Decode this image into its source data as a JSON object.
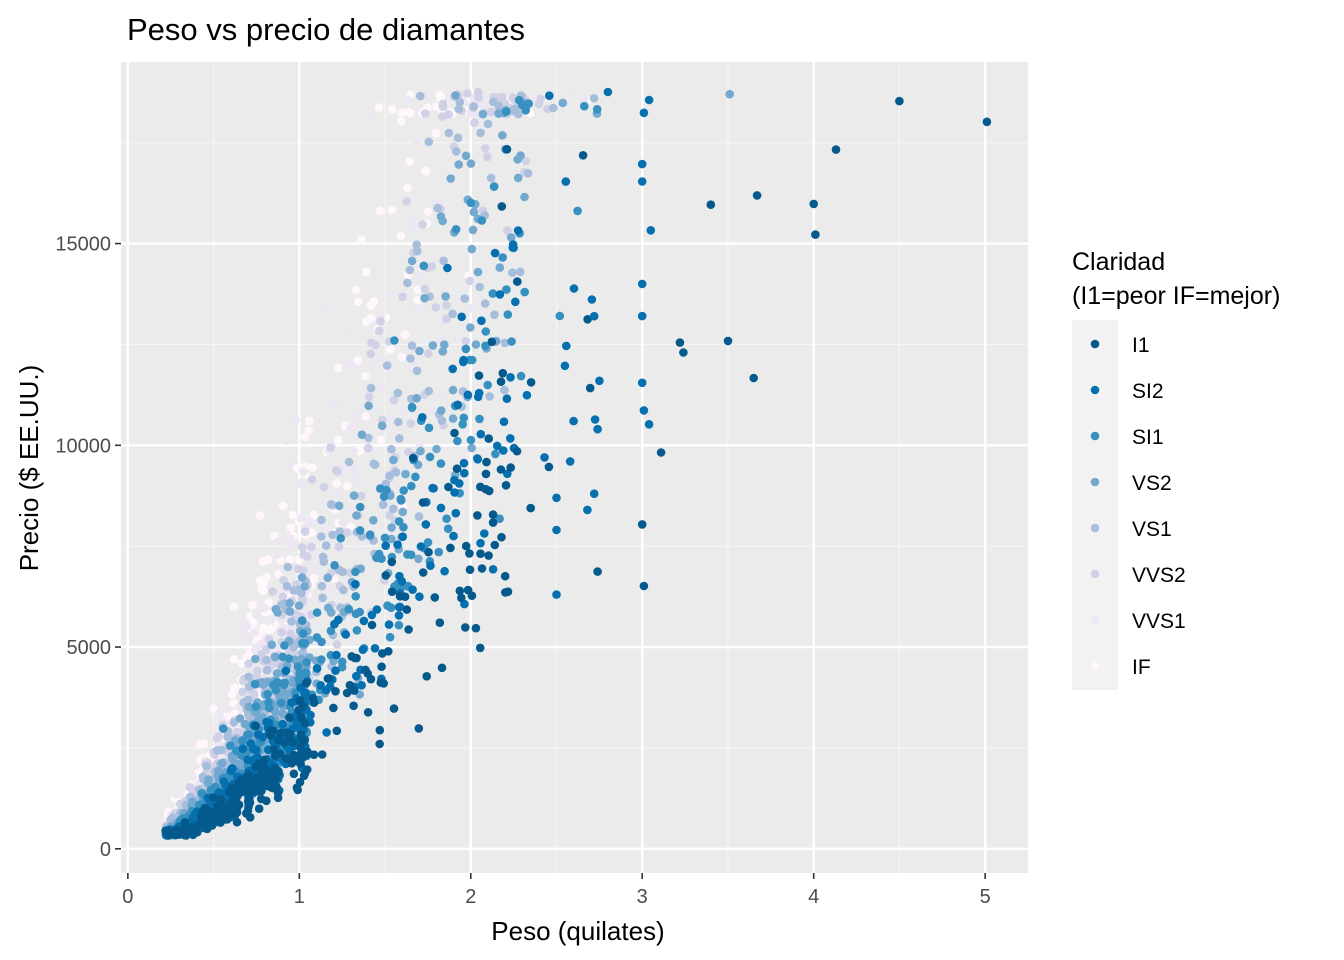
{
  "chart_data": {
    "type": "scatter",
    "title": "Peso vs precio de diamantes",
    "xlabel": "Peso (quilates)",
    "ylabel": "Precio ($ EE.UU.)",
    "xlim": [
      -0.04,
      5.25
    ],
    "ylim": [
      -600,
      19500
    ],
    "x_ticks": [
      0,
      1,
      2,
      3,
      4,
      5
    ],
    "x_tick_labels": [
      "0",
      "1",
      "2",
      "3",
      "4",
      "5"
    ],
    "y_ticks": [
      0,
      5000,
      10000,
      15000
    ],
    "y_tick_labels": [
      "0",
      "5000",
      "10000",
      "15000"
    ],
    "grid": true,
    "legend": {
      "title_lines": [
        "Claridad",
        "(I1=peor IF=mejor)"
      ],
      "placement": "right"
    },
    "series": [
      {
        "name": "I1",
        "color": "#045a8d"
      },
      {
        "name": "SI2",
        "color": "#0570b0"
      },
      {
        "name": "SI1",
        "color": "#3690c0"
      },
      {
        "name": "VS2",
        "color": "#74a9cf"
      },
      {
        "name": "VS1",
        "color": "#a6bddb"
      },
      {
        "name": "VVS2",
        "color": "#d0d1e6"
      },
      {
        "name": "VVS1",
        "color": "#ece7f2"
      },
      {
        "name": "IF",
        "color": "#fff7fb"
      }
    ],
    "outliers": [
      {
        "series": "I1",
        "x": 5.01,
        "y": 18018
      },
      {
        "series": "I1",
        "x": 4.5,
        "y": 18531
      },
      {
        "series": "I1",
        "x": 4.13,
        "y": 17329
      },
      {
        "series": "I1",
        "x": 4.01,
        "y": 15223
      },
      {
        "series": "I1",
        "x": 4.0,
        "y": 15984
      },
      {
        "series": "I1",
        "x": 3.67,
        "y": 16193
      },
      {
        "series": "I1",
        "x": 3.4,
        "y": 15964
      },
      {
        "series": "I1",
        "x": 3.65,
        "y": 11668
      },
      {
        "series": "I1",
        "x": 3.5,
        "y": 12587
      },
      {
        "series": "I1",
        "x": 3.22,
        "y": 12545
      },
      {
        "series": "I1",
        "x": 3.24,
        "y": 12300
      },
      {
        "series": "I1",
        "x": 3.11,
        "y": 9823
      },
      {
        "series": "I1",
        "x": 3.01,
        "y": 6512
      },
      {
        "series": "I1",
        "x": 3.0,
        "y": 8040
      },
      {
        "series": "I1",
        "x": 2.74,
        "y": 6870
      },
      {
        "series": "VS2",
        "x": 3.51,
        "y": 18701
      },
      {
        "series": "SI2",
        "x": 2.8,
        "y": 18756
      },
      {
        "series": "SI2",
        "x": 3.04,
        "y": 18559
      },
      {
        "series": "SI2",
        "x": 3.01,
        "y": 18242
      },
      {
        "series": "SI2",
        "x": 3.0,
        "y": 16970
      },
      {
        "series": "SI2",
        "x": 3.0,
        "y": 16538
      },
      {
        "series": "SI2",
        "x": 3.05,
        "y": 15329
      },
      {
        "series": "SI2",
        "x": 3.0,
        "y": 14000
      },
      {
        "series": "SI2",
        "x": 3.0,
        "y": 13203
      },
      {
        "series": "SI2",
        "x": 3.01,
        "y": 10865
      },
      {
        "series": "SI2",
        "x": 3.04,
        "y": 10520
      },
      {
        "series": "SI2",
        "x": 3.0,
        "y": 11548
      },
      {
        "series": "SI2",
        "x": 2.75,
        "y": 11600
      },
      {
        "series": "SI2",
        "x": 2.72,
        "y": 13200
      },
      {
        "series": "SI2",
        "x": 2.6,
        "y": 10600
      },
      {
        "series": "SI2",
        "x": 2.74,
        "y": 10400
      },
      {
        "series": "SI2",
        "x": 2.5,
        "y": 8700
      },
      {
        "series": "SI2",
        "x": 2.5,
        "y": 7900
      },
      {
        "series": "SI2",
        "x": 2.5,
        "y": 6300
      },
      {
        "series": "SI2",
        "x": 2.72,
        "y": 8800
      },
      {
        "series": "SI2",
        "x": 2.68,
        "y": 8400
      },
      {
        "series": "SI2",
        "x": 2.58,
        "y": 9600
      },
      {
        "series": "SI2",
        "x": 2.43,
        "y": 9700
      }
    ]
  }
}
